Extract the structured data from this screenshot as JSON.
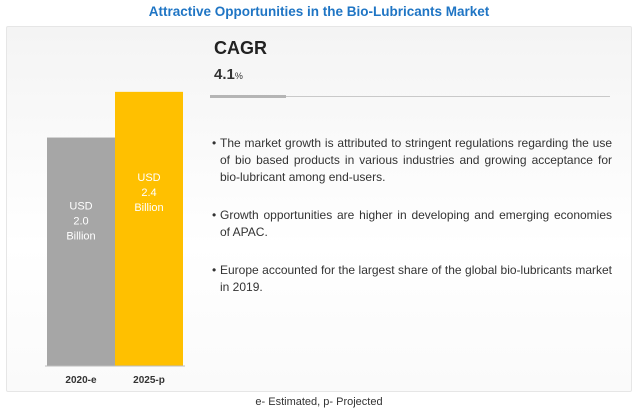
{
  "title": "Attractive Opportunities in the Bio-Lubricants Market",
  "cagr": {
    "label": "CAGR",
    "value": "4.1",
    "unit": "%"
  },
  "bullets": [
    "The market growth is attributed to stringent regulations regarding the use of bio based products in various industries and growing acceptance for bio-lubricant among end-users.",
    "Growth opportunities are higher in developing and emerging economies of APAC.",
    "Europe accounted for the largest share of the global bio-lubricants market in 2019."
  ],
  "footnote": "e- Estimated,  p- Projected",
  "colors": {
    "title": "#1f75c4",
    "bar_2020": "#a6a6a6",
    "bar_2025": "#ffc000"
  },
  "chart_data": {
    "type": "bar",
    "categories": [
      "2020-e",
      "2025-p"
    ],
    "values": [
      2.0,
      2.4
    ],
    "bar_labels": [
      [
        "USD",
        "2.0",
        "Billion"
      ],
      [
        "USD",
        "2.4",
        "Billion"
      ]
    ],
    "colors": [
      "#a6a6a6",
      "#ffc000"
    ],
    "ylim": [
      0,
      2.6
    ],
    "xlabel": "",
    "ylabel": "",
    "grid": false,
    "legend": "none"
  }
}
